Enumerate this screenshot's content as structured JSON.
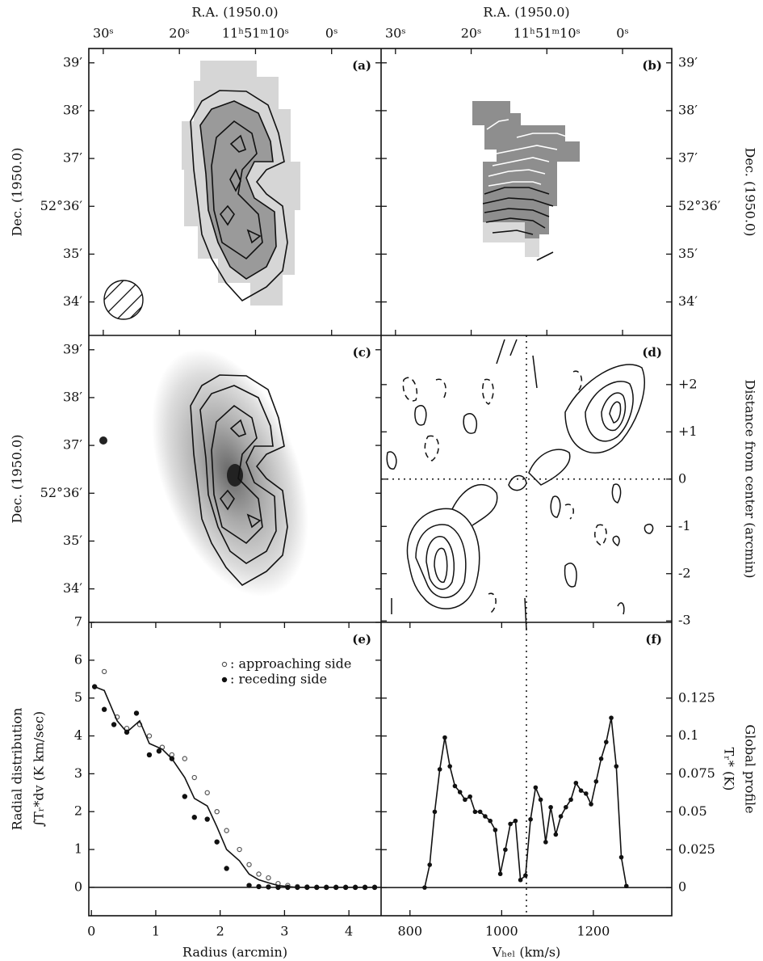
{
  "chart_data": [
    {
      "type": "map",
      "panel": "(a)",
      "xlabel": "R.A. (1950.0)",
      "ylabel": "Dec. (1950.0)",
      "xaxis": "top",
      "yaxis": "left",
      "xlim": [
        31.9,
        -6.5
      ],
      "ylim": [
        33.3,
        39.3
      ],
      "xticks": [
        {
          "value": 30,
          "label": "30ˢ"
        },
        {
          "value": 20,
          "label": "20ˢ"
        },
        {
          "value": 10,
          "label": "11ʰ51ᵐ10ˢ"
        },
        {
          "value": 0,
          "label": "0ˢ"
        }
      ],
      "yticks": [
        {
          "value": 39,
          "label": "39′"
        },
        {
          "value": 38,
          "label": "38′"
        },
        {
          "value": 37,
          "label": "37′"
        },
        {
          "value": 36,
          "label": "52°36′"
        },
        {
          "value": 35,
          "label": "35′"
        },
        {
          "value": 34,
          "label": "34′"
        }
      ]
    },
    {
      "type": "map",
      "panel": "(b)",
      "xlabel": "R.A. (1950.0)",
      "ylabel": "Dec. (1950.0)",
      "xaxis": "top",
      "yaxis": "right",
      "xlim": [
        31.9,
        -6.5
      ],
      "ylim": [
        33.3,
        39.3
      ],
      "xticks": [
        {
          "value": 30,
          "label": "30ˢ"
        },
        {
          "value": 20,
          "label": "20ˢ"
        },
        {
          "value": 10,
          "label": "11ʰ51ᵐ10ˢ"
        },
        {
          "value": 0,
          "label": "0ˢ"
        }
      ],
      "yticks": [
        {
          "value": 39,
          "label": "39′"
        },
        {
          "value": 38,
          "label": "38′"
        },
        {
          "value": 37,
          "label": "37′"
        },
        {
          "value": 36,
          "label": "52°36′"
        },
        {
          "value": 35,
          "label": "35′"
        },
        {
          "value": 34,
          "label": "34′"
        }
      ]
    },
    {
      "type": "map",
      "panel": "(c)",
      "ylabel": "Dec. (1950.0)",
      "yaxis": "left",
      "xlim": [
        31.9,
        -6.5
      ],
      "ylim": [
        33.3,
        39.3
      ],
      "yticks": [
        {
          "value": 39,
          "label": "39′"
        },
        {
          "value": 38,
          "label": "38′"
        },
        {
          "value": 37,
          "label": "37′"
        },
        {
          "value": 36,
          "label": "52°36′"
        },
        {
          "value": 35,
          "label": "35′"
        },
        {
          "value": 34,
          "label": "34′"
        }
      ]
    },
    {
      "type": "pv",
      "panel": "(d)",
      "ylabel": "Distance from center (arcmin)",
      "yaxis": "right",
      "xlim": [
        737,
        1371
      ],
      "ylim": [
        -3.03,
        3.04
      ],
      "yticks": [
        {
          "value": 2,
          "label": "+2"
        },
        {
          "value": 1,
          "label": "+1"
        },
        0,
        -1,
        -2,
        -3
      ],
      "vline": {
        "value": 1054,
        "style": "dotted"
      },
      "hline": {
        "value": 0,
        "style": "dotted"
      }
    },
    {
      "type": "scatter",
      "panel": "(e)",
      "xlabel": "Radius (arcmin)",
      "ylabel": [
        "Radial distribution",
        "∫Tᵣ*dv (K km/sec)"
      ],
      "xaxis": "bottom",
      "yaxis": "left",
      "xlim": [
        -0.04,
        4.5
      ],
      "ylim": [
        -0.75,
        7
      ],
      "xticks": [
        0,
        1,
        2,
        3,
        4
      ],
      "yticks": [
        0,
        1,
        2,
        3,
        4,
        5,
        6,
        7
      ],
      "hline": {
        "value": 0,
        "style": "solid"
      },
      "series": [
        {
          "name": ": approaching side",
          "marker": "open",
          "color": "#555",
          "x": [
            0.2,
            0.4,
            0.55,
            0.75,
            0.9,
            1.1,
            1.25,
            1.45,
            1.6,
            1.8,
            1.95,
            2.1,
            2.3,
            2.45,
            2.6,
            2.75,
            2.9,
            3.05,
            3.2,
            3.35,
            3.5,
            3.65,
            3.8,
            3.95,
            4.1,
            4.25,
            4.4
          ],
          "values": [
            5.7,
            4.5,
            4.2,
            4.3,
            4.0,
            3.7,
            3.5,
            3.4,
            2.9,
            2.5,
            2.0,
            1.5,
            1.0,
            0.6,
            0.35,
            0.25,
            0.1,
            0.05,
            0.02,
            0.01,
            0,
            0,
            0,
            0,
            0,
            0,
            0
          ]
        },
        {
          "name": ": receding side",
          "marker": "filled",
          "color": "#111",
          "x": [
            0.05,
            0.2,
            0.35,
            0.55,
            0.7,
            0.9,
            1.05,
            1.25,
            1.45,
            1.6,
            1.8,
            1.95,
            2.1,
            2.45,
            2.6,
            2.75,
            2.9,
            3.05,
            3.2,
            3.35,
            3.5,
            3.65,
            3.8,
            3.95,
            4.1,
            4.25,
            4.4
          ],
          "values": [
            5.3,
            4.7,
            4.3,
            4.1,
            4.6,
            3.5,
            3.6,
            3.4,
            2.4,
            1.85,
            1.8,
            1.2,
            0.5,
            0.05,
            0.02,
            0.01,
            0,
            0,
            0,
            0,
            0,
            0,
            0,
            0,
            0,
            0,
            0
          ]
        },
        {
          "marker": "line",
          "color": "#111",
          "x": [
            0.05,
            0.2,
            0.4,
            0.55,
            0.75,
            0.9,
            1.1,
            1.25,
            1.45,
            1.6,
            1.8,
            1.95,
            2.1,
            2.3,
            2.45,
            2.6,
            2.75,
            2.9,
            3.05,
            3.2,
            4.4
          ],
          "values": [
            5.3,
            5.2,
            4.4,
            4.1,
            4.4,
            3.8,
            3.65,
            3.4,
            2.9,
            2.35,
            2.15,
            1.6,
            1.0,
            0.7,
            0.35,
            0.2,
            0.12,
            0.05,
            0.02,
            0,
            0
          ]
        }
      ]
    },
    {
      "type": "line",
      "panel": "(f)",
      "xlabel": "Vₕₑₗ (km/s)",
      "ylabel": [
        "Global profile",
        "Tᵣ* (K)"
      ],
      "xaxis": "bottom",
      "yaxis": "right",
      "xlim": [
        737,
        1371
      ],
      "ylim": [
        -0.0186,
        0.175
      ],
      "xticks": [
        800,
        1000,
        1200
      ],
      "yticks": [
        0,
        0.025,
        0.05,
        0.075,
        0.1,
        0.125
      ],
      "vline": {
        "value": 1054,
        "style": "dotted"
      },
      "hline": {
        "value": 0,
        "style": "solid"
      },
      "color": "#111",
      "x": [
        832,
        843,
        854,
        865,
        876,
        887,
        898,
        909,
        920,
        931,
        942,
        953,
        964,
        975,
        986,
        997,
        1008,
        1019,
        1030,
        1041,
        1052,
        1063,
        1074,
        1085,
        1096,
        1107,
        1118,
        1129,
        1140,
        1151,
        1162,
        1173,
        1184,
        1195,
        1206,
        1217,
        1228,
        1239,
        1250,
        1261,
        1272
      ],
      "values": [
        0,
        0.015,
        0.05,
        0.078,
        0.099,
        0.08,
        0.067,
        0.063,
        0.058,
        0.06,
        0.05,
        0.05,
        0.047,
        0.044,
        0.038,
        0.009,
        0.025,
        0.042,
        0.044,
        0.005,
        0.008,
        0.045,
        0.066,
        0.058,
        0.03,
        0.053,
        0.035,
        0.047,
        0.053,
        0.058,
        0.069,
        0.064,
        0.062,
        0.055,
        0.07,
        0.085,
        0.096,
        0.112,
        0.08,
        0.02,
        0.001
      ]
    }
  ]
}
